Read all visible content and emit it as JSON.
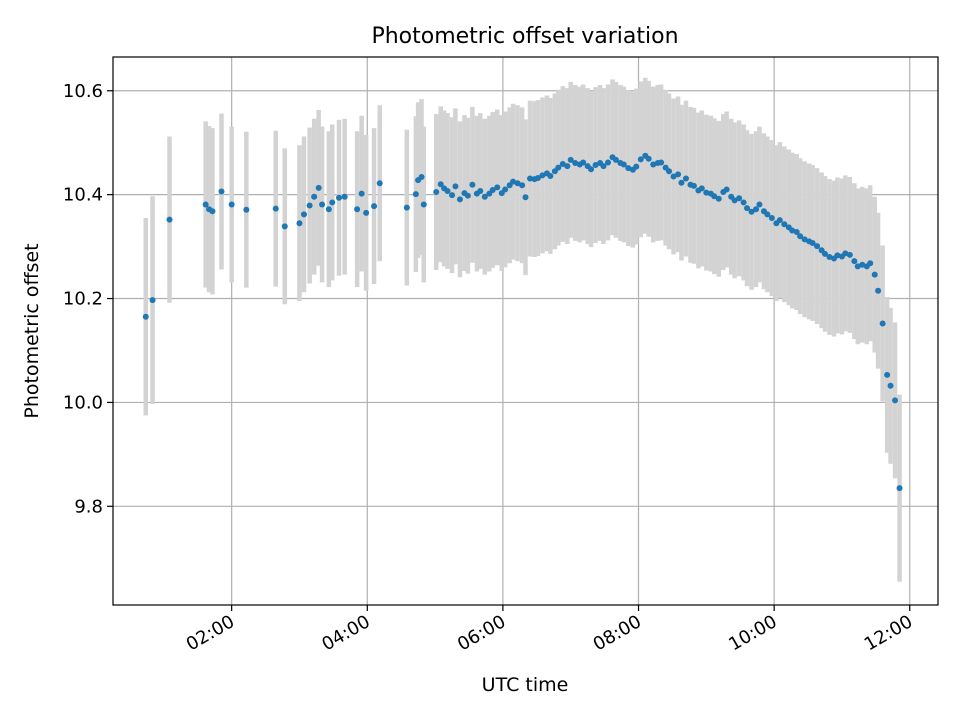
{
  "chart_data": {
    "type": "scatter",
    "title": "Photometric offset variation",
    "xlabel": "UTC time",
    "ylabel": "Photometric offset",
    "grid": true,
    "xlim": [
      "00:15",
      "12:25"
    ],
    "ylim": [
      9.61,
      10.665
    ],
    "x_ticks": [
      "02:00",
      "04:00",
      "06:00",
      "08:00",
      "10:00",
      "12:00"
    ],
    "y_ticks": [
      9.8,
      10.0,
      10.2,
      10.4,
      10.6
    ],
    "y_tick_labels": [
      "9.8",
      "10.0",
      "10.2",
      "10.4",
      "10.6"
    ],
    "colors": {
      "points": "#1f77b4",
      "error_bars": "#d3d3d3",
      "grid": "#b0b0b0"
    },
    "series": [
      {
        "x": [
          "00:44",
          "00:50",
          "01:05",
          "01:37",
          "01:40",
          "01:43",
          "01:51",
          "02:00",
          "02:13",
          "02:39",
          "02:47",
          "03:00",
          "03:04",
          "03:09",
          "03:13",
          "03:17",
          "03:20",
          "03:26",
          "03:29",
          "03:35",
          "03:40",
          "03:51",
          "03:55",
          "03:59",
          "04:06",
          "04:11",
          "04:35",
          "04:43",
          "04:45",
          "04:48",
          "04:50",
          "05:01",
          "05:05",
          "05:08",
          "05:11",
          "05:15",
          "05:18",
          "05:22",
          "05:26",
          "05:29",
          "05:33",
          "05:37",
          "05:40",
          "05:44",
          "05:48",
          "05:51",
          "05:55",
          "05:59",
          "06:02",
          "06:06",
          "06:09",
          "06:13",
          "06:17",
          "06:20",
          "06:24",
          "06:28",
          "06:31",
          "06:35",
          "06:39",
          "06:42",
          "06:46",
          "06:49",
          "06:53",
          "06:57",
          "07:00",
          "07:04",
          "07:08",
          "07:11",
          "07:15",
          "07:18",
          "07:22",
          "07:26",
          "07:29",
          "07:33",
          "07:37",
          "07:40",
          "07:44",
          "07:47",
          "07:51",
          "07:55",
          "07:58",
          "08:02",
          "08:06",
          "08:09",
          "08:13",
          "08:17",
          "08:20",
          "08:24",
          "08:27",
          "08:31",
          "08:35",
          "08:38",
          "08:42",
          "08:46",
          "08:49",
          "08:53",
          "08:56",
          "09:00",
          "09:04",
          "09:07",
          "09:11",
          "09:15",
          "09:18",
          "09:22",
          "09:25",
          "09:29",
          "09:33",
          "09:36",
          "09:40",
          "09:44",
          "09:47",
          "09:51",
          "09:54",
          "09:58",
          "10:02",
          "10:05",
          "10:09",
          "10:13",
          "10:16",
          "10:20",
          "10:23",
          "10:27",
          "10:31",
          "10:34",
          "10:38",
          "10:42",
          "10:45",
          "10:49",
          "10:53",
          "10:56",
          "11:00",
          "11:03",
          "11:07",
          "11:11",
          "11:14",
          "11:18",
          "11:22",
          "11:25",
          "11:29",
          "11:32",
          "11:36",
          "11:40",
          "11:43",
          "11:47",
          "11:51"
        ],
        "y": [
          10.165,
          10.197,
          10.352,
          10.381,
          10.372,
          10.368,
          10.406,
          10.381,
          10.371,
          10.373,
          10.339,
          10.345,
          10.362,
          10.379,
          10.396,
          10.413,
          10.381,
          10.372,
          10.385,
          10.394,
          10.396,
          10.372,
          10.402,
          10.365,
          10.378,
          10.422,
          10.375,
          10.401,
          10.428,
          10.434,
          10.381,
          10.405,
          10.42,
          10.412,
          10.407,
          10.399,
          10.416,
          10.391,
          10.403,
          10.398,
          10.419,
          10.402,
          10.407,
          10.396,
          10.402,
          10.409,
          10.414,
          10.403,
          10.41,
          10.418,
          10.425,
          10.422,
          10.418,
          10.395,
          10.431,
          10.43,
          10.432,
          10.437,
          10.441,
          10.436,
          10.445,
          10.452,
          10.459,
          10.455,
          10.467,
          10.461,
          10.458,
          10.462,
          10.455,
          10.449,
          10.457,
          10.461,
          10.455,
          10.462,
          10.472,
          10.467,
          10.461,
          10.458,
          10.451,
          10.448,
          10.454,
          10.468,
          10.475,
          10.469,
          10.458,
          10.461,
          10.462,
          10.452,
          10.445,
          10.435,
          10.439,
          10.423,
          10.431,
          10.419,
          10.417,
          10.408,
          10.412,
          10.404,
          10.402,
          10.397,
          10.392,
          10.405,
          10.41,
          10.396,
          10.389,
          10.393,
          10.385,
          10.374,
          10.367,
          10.372,
          10.381,
          10.368,
          10.362,
          10.355,
          10.345,
          10.351,
          10.343,
          10.337,
          10.331,
          10.328,
          10.32,
          10.314,
          10.31,
          10.307,
          10.301,
          10.293,
          10.286,
          10.28,
          10.277,
          10.283,
          10.281,
          10.287,
          10.284,
          10.272,
          10.262,
          10.265,
          10.262,
          10.268,
          10.246,
          10.215,
          10.152,
          10.053,
          10.032,
          10.004,
          9.835
        ],
        "yerr": [
          0.19,
          0.2,
          0.16,
          0.16,
          0.16,
          0.16,
          0.15,
          0.15,
          0.15,
          0.15,
          0.15,
          0.15,
          0.15,
          0.15,
          0.15,
          0.15,
          0.15,
          0.15,
          0.15,
          0.15,
          0.15,
          0.15,
          0.15,
          0.15,
          0.15,
          0.15,
          0.15,
          0.15,
          0.15,
          0.15,
          0.15,
          0.15,
          0.15,
          0.15,
          0.15,
          0.15,
          0.15,
          0.15,
          0.15,
          0.15,
          0.15,
          0.15,
          0.15,
          0.15,
          0.15,
          0.15,
          0.15,
          0.15,
          0.15,
          0.15,
          0.15,
          0.15,
          0.15,
          0.15,
          0.15,
          0.15,
          0.15,
          0.15,
          0.15,
          0.15,
          0.15,
          0.15,
          0.15,
          0.15,
          0.15,
          0.15,
          0.15,
          0.15,
          0.15,
          0.15,
          0.15,
          0.15,
          0.15,
          0.15,
          0.15,
          0.15,
          0.15,
          0.15,
          0.15,
          0.15,
          0.15,
          0.15,
          0.15,
          0.15,
          0.15,
          0.15,
          0.15,
          0.15,
          0.15,
          0.15,
          0.15,
          0.15,
          0.15,
          0.15,
          0.15,
          0.15,
          0.15,
          0.15,
          0.15,
          0.15,
          0.15,
          0.15,
          0.15,
          0.15,
          0.15,
          0.15,
          0.15,
          0.15,
          0.15,
          0.15,
          0.15,
          0.15,
          0.15,
          0.15,
          0.15,
          0.15,
          0.15,
          0.15,
          0.15,
          0.15,
          0.15,
          0.15,
          0.15,
          0.15,
          0.15,
          0.15,
          0.15,
          0.15,
          0.15,
          0.15,
          0.15,
          0.15,
          0.15,
          0.15,
          0.15,
          0.15,
          0.15,
          0.15,
          0.15,
          0.15,
          0.15,
          0.15,
          0.15,
          0.15,
          0.18
        ]
      }
    ]
  }
}
